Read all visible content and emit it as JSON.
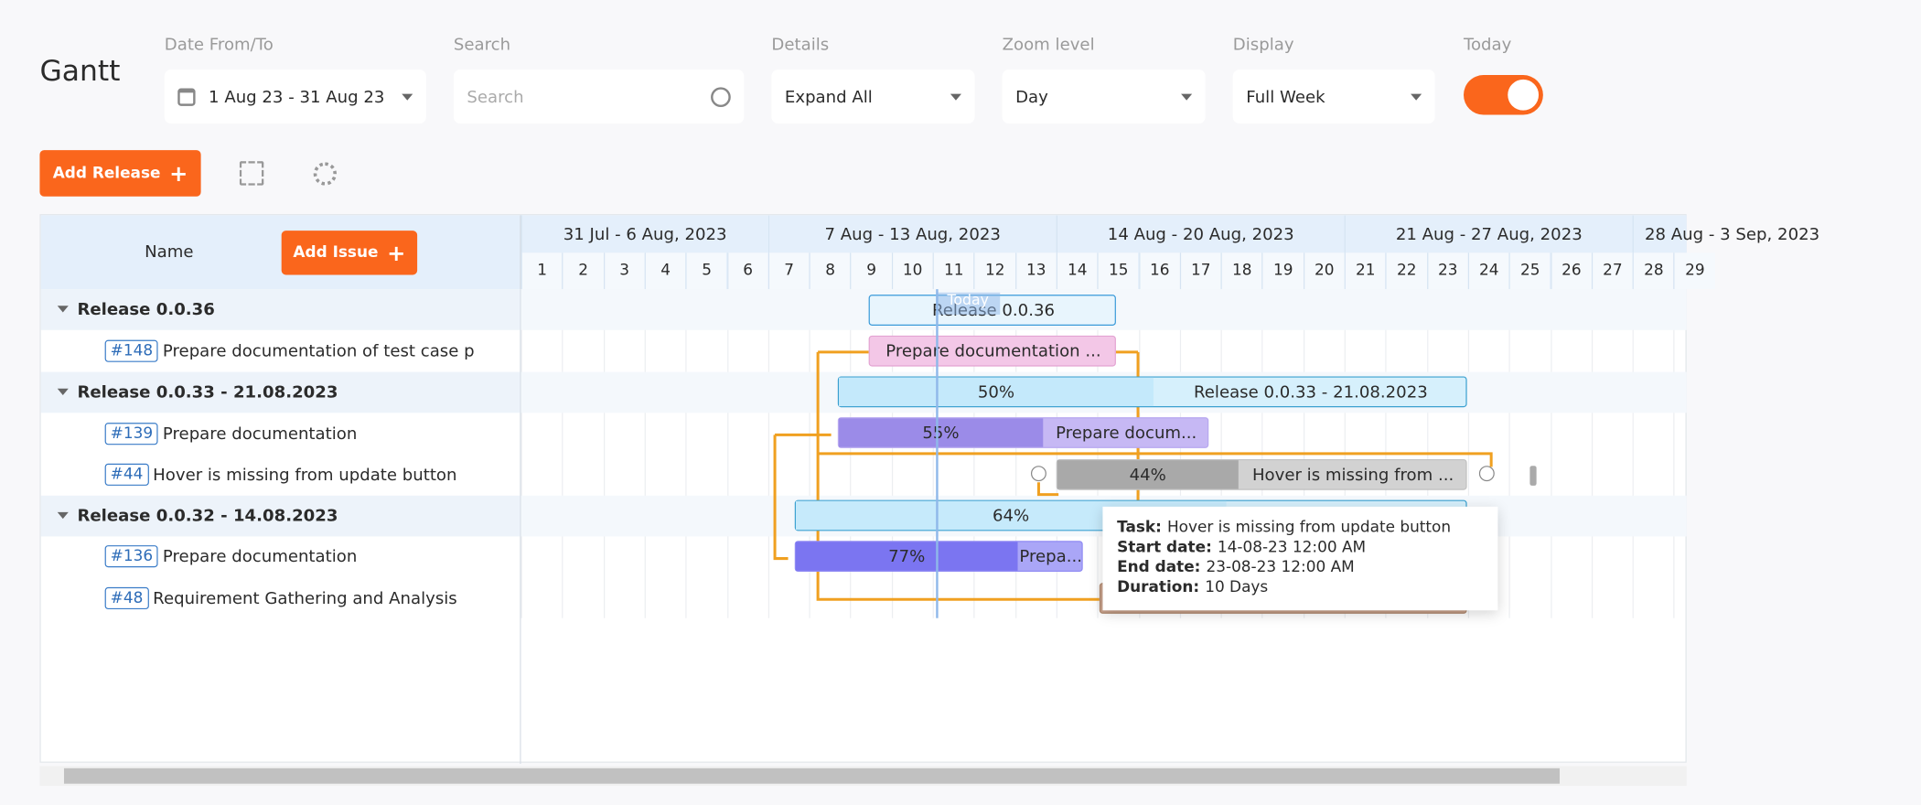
{
  "header": {
    "title": "Gantt"
  },
  "filters": [
    {
      "label": "Date From/To",
      "value": "1 Aug 23 - 31 Aug 23"
    },
    {
      "label": "Search",
      "placeholder": "Search"
    },
    {
      "label": "Details",
      "value": "Expand All"
    },
    {
      "label": "Zoom level",
      "value": "Day"
    },
    {
      "label": "Display",
      "value": "Full Week"
    },
    {
      "label": "Today"
    }
  ],
  "toolbar": {
    "add_release": "Add Release"
  },
  "grid": {
    "name_header": "Name",
    "add_issue": "Add Issue",
    "rows": [
      {
        "type": "release",
        "name": "Release 0.0.36",
        "bar_label": "Release 0.0.36"
      },
      {
        "type": "issue",
        "id": "#148",
        "name": "Prepare documentation of test case p",
        "bar_label": "Prepare documentation ..."
      },
      {
        "type": "release",
        "name": "Release 0.0.33 - 21.08.2023",
        "progress": 50,
        "progress_label": "50%",
        "bar_label": "Release 0.0.33 - 21.08.2023"
      },
      {
        "type": "issue",
        "id": "#139",
        "name": "Prepare documentation",
        "progress": 55,
        "progress_label": "55%",
        "bar_label": "Prepare docum..."
      },
      {
        "type": "issue",
        "id": "#44",
        "name": "Hover is missing from update button",
        "progress": 44,
        "progress_label": "44%",
        "bar_label": "Hover is missing from ..."
      },
      {
        "type": "release",
        "name": "Release 0.0.32 - 14.08.2023",
        "progress": 64,
        "progress_label": "64%"
      },
      {
        "type": "issue",
        "id": "#136",
        "name": "Prepare documentation",
        "progress": 77,
        "progress_label": "77%",
        "bar_label": "Prepa..."
      },
      {
        "type": "issue",
        "id": "#48",
        "name": "Requirement Gathering and Analysis"
      }
    ]
  },
  "timeline": {
    "weeks": [
      "31 Jul - 6 Aug, 2023",
      "7 Aug - 13 Aug, 2023",
      "14 Aug - 20 Aug, 2023",
      "21 Aug - 27 Aug, 2023",
      "28 Aug - 3 Sep, 2023"
    ],
    "days": [
      1,
      2,
      3,
      4,
      5,
      6,
      7,
      8,
      9,
      10,
      11,
      12,
      13,
      14,
      15,
      16,
      17,
      18,
      19,
      20,
      21,
      22,
      23,
      24,
      25,
      26,
      27,
      28,
      29
    ],
    "today_label": "Today"
  },
  "tooltip": [
    {
      "label": "Task:",
      "value": "Hover is missing from update button"
    },
    {
      "label": "Start date:",
      "value": "14-08-23 12:00 AM"
    },
    {
      "label": "End date:",
      "value": "23-08-23 12:00 AM"
    },
    {
      "label": "Duration:",
      "value": "10 Days"
    }
  ]
}
